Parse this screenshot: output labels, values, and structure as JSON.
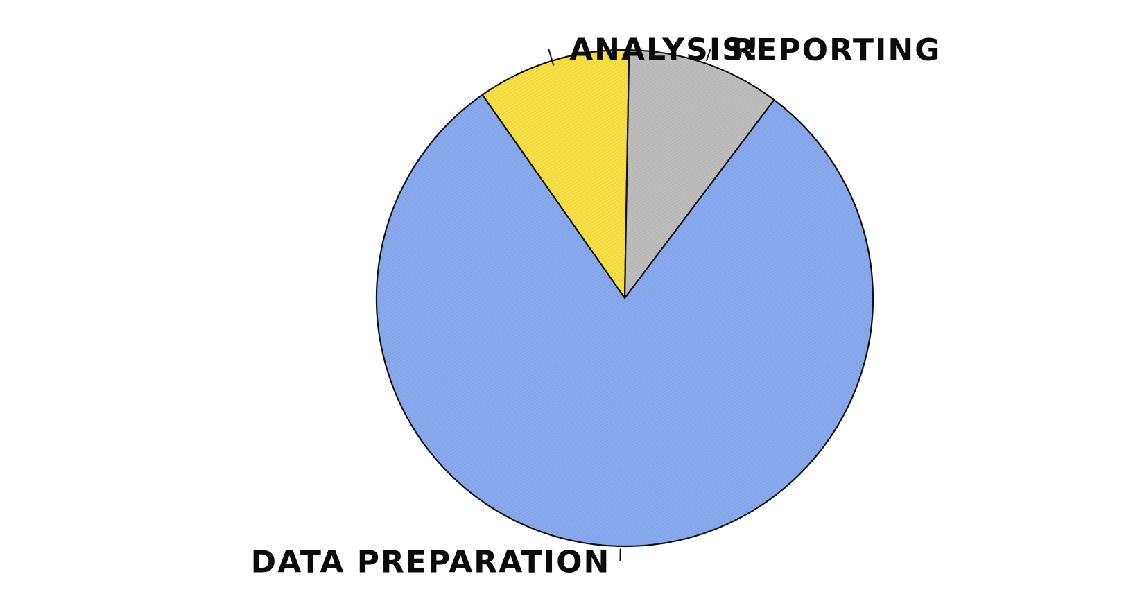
{
  "chart_data": {
    "type": "pie",
    "title": "",
    "start_angle_deg": 125,
    "direction": "clockwise",
    "slices": [
      {
        "label": "ANALYSIS!",
        "value": 10,
        "color": "#f7df45"
      },
      {
        "label": "REPORTING",
        "value": 10,
        "color": "#bdbdbd"
      },
      {
        "label": "DATA PREPARATION",
        "value": 80,
        "color": "#88a9ee"
      }
    ],
    "legend": "none",
    "style": "xkcd"
  }
}
